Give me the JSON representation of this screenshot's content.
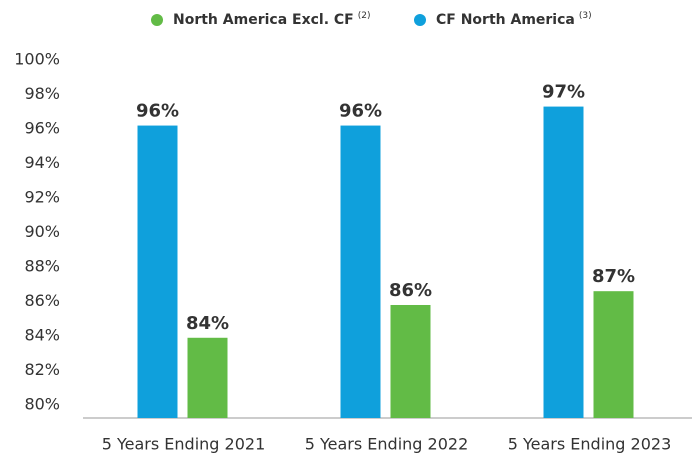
{
  "chart_data": {
    "type": "bar",
    "categories": [
      "5 Years Ending 2021",
      "5 Years Ending 2022",
      "5 Years Ending 2023"
    ],
    "series": [
      {
        "name": "North America Excl. CF",
        "note": "(2)",
        "color": "#62bb46",
        "values": [
          83.9,
          85.8,
          86.6
        ],
        "value_labels": [
          "84%",
          "86%",
          "87%"
        ]
      },
      {
        "name": "CF North America",
        "note": "(3)",
        "color": "#0fa0dc",
        "values": [
          96.2,
          96.2,
          97.3
        ],
        "value_labels": [
          "96%",
          "96%",
          "97%"
        ]
      }
    ],
    "ylim": [
      79.25,
      100
    ],
    "yticks": [
      {
        "value": 80,
        "label": "80%"
      },
      {
        "value": 82,
        "label": "82%"
      },
      {
        "value": 84,
        "label": "84%"
      },
      {
        "value": 86,
        "label": "86%"
      },
      {
        "value": 88,
        "label": "88%"
      },
      {
        "value": 90,
        "label": "90%"
      },
      {
        "value": 92,
        "label": "92%"
      },
      {
        "value": 94,
        "label": "94%"
      },
      {
        "value": 96,
        "label": "96%"
      },
      {
        "value": 98,
        "label": "98%"
      },
      {
        "value": 100,
        "label": "100%"
      }
    ],
    "grid": false
  }
}
